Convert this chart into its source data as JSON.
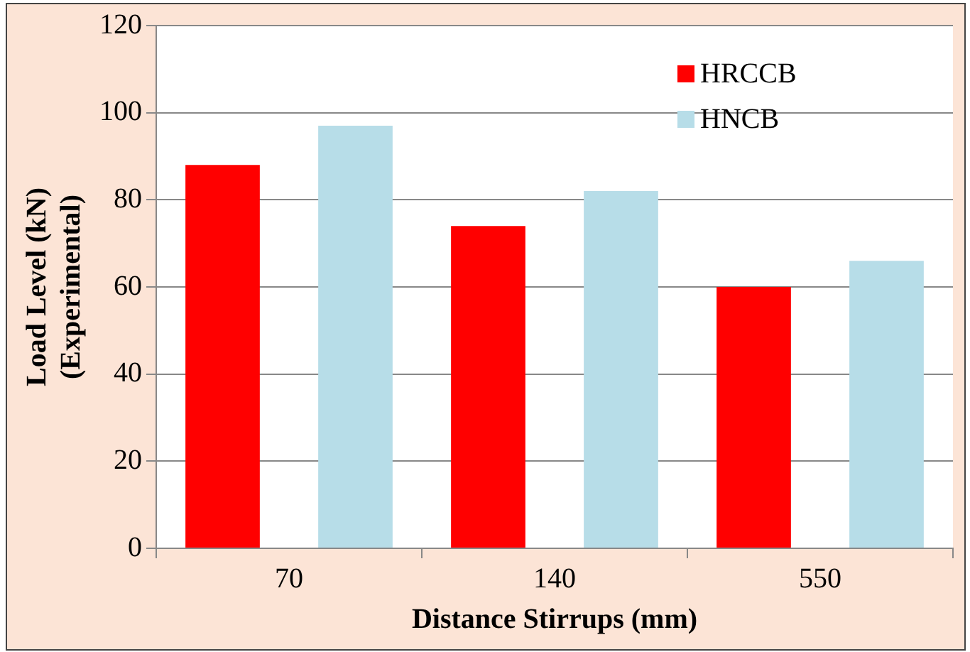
{
  "chart_data": {
    "type": "bar",
    "xlabel": "Distance Stirrups (mm)",
    "ylabel": "Load Level (kN)\n(Experimental)",
    "categories": [
      "70",
      "140",
      "550"
    ],
    "series": [
      {
        "name": "HRCCB",
        "color": "#ff0000",
        "values": [
          88,
          74,
          60
        ]
      },
      {
        "name": "HNCB",
        "color": "#b7dde8",
        "values": [
          97,
          82,
          66
        ]
      }
    ],
    "ylim": [
      0,
      120
    ],
    "yticks": [
      0,
      20,
      40,
      60,
      80,
      100,
      120
    ],
    "grid": "y",
    "legend": "top right"
  }
}
